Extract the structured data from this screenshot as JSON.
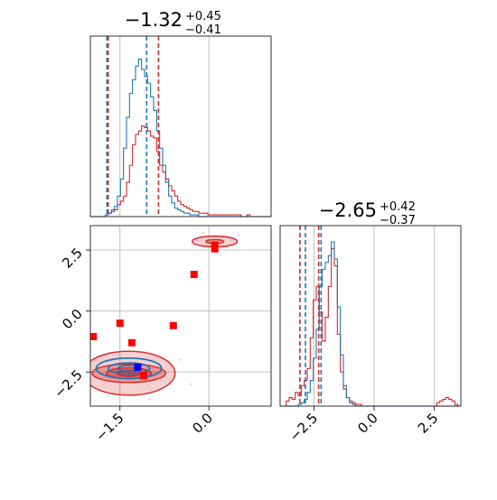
{
  "chart_data": {
    "type": "corner",
    "colors": {
      "series_a": "#d62728",
      "series_b": "#1f77b4",
      "truth_marker": "#ff0000",
      "truth_point": "#0000ff",
      "grid": "#b0b0b0"
    },
    "parameters": [
      {
        "title_main": "−1.32",
        "title_sup": "+0.45",
        "title_sub": "−0.41",
        "range": [
          -2.0,
          1.05
        ],
        "ticks": [
          -1.5,
          0.0
        ],
        "tick_labels": [
          "−1.5",
          "0.0"
        ]
      },
      {
        "title_main": "−2.65",
        "title_sup": "+0.42",
        "title_sub": "−0.37",
        "range": [
          -3.9,
          3.6
        ],
        "ticks": [
          -2.5,
          0.0,
          2.5
        ],
        "tick_labels": [
          "−2.5",
          "0.0",
          "2.5"
        ]
      }
    ],
    "panel_2d_yticks": [
      2.5,
      0.0,
      -2.5
    ],
    "panel_2d_ytick_labels": [
      "2.5",
      "0.0",
      "−2.5"
    ],
    "hist1": {
      "bins": [
        -2.0,
        1.05,
        60
      ],
      "series": [
        {
          "name_color": "red",
          "values": [
            0,
            0,
            0,
            0,
            0,
            1,
            2,
            3,
            4,
            7,
            9,
            12,
            20,
            30,
            42,
            48,
            50,
            53,
            52,
            50,
            47,
            46,
            38,
            30,
            26,
            22,
            18,
            15,
            12,
            9,
            7,
            6,
            5,
            4,
            3,
            3,
            2,
            2,
            2,
            1,
            1,
            1,
            1,
            1,
            1,
            1,
            1,
            1,
            1,
            1,
            0,
            0,
            1,
            0,
            0,
            0,
            0,
            0,
            0,
            0
          ],
          "quantile_lines": [
            -1.7,
            -0.85
          ]
        },
        {
          "name_color": "blue",
          "values": [
            0,
            0,
            0,
            0,
            0,
            1,
            2,
            4,
            6,
            12,
            22,
            40,
            58,
            72,
            80,
            88,
            92,
            86,
            82,
            78,
            70,
            62,
            50,
            40,
            30,
            20,
            12,
            8,
            5,
            4,
            3,
            2,
            2,
            1,
            1,
            1,
            0,
            0,
            0,
            0,
            0,
            0,
            0,
            0,
            0,
            0,
            0,
            0,
            0,
            0,
            0,
            0,
            0,
            0,
            0,
            0,
            0,
            0,
            0,
            0
          ],
          "quantile_lines": [
            -1.72,
            -1.05
          ]
        }
      ]
    },
    "hist2": {
      "bins": [
        -3.9,
        3.6,
        60
      ],
      "series": [
        {
          "name_color": "red",
          "values": [
            0,
            0,
            3,
            5,
            4,
            8,
            6,
            12,
            15,
            22,
            40,
            62,
            70,
            55,
            38,
            52,
            70,
            92,
            82,
            42,
            20,
            10,
            5,
            3,
            2,
            1,
            1,
            0,
            0,
            0,
            0,
            0,
            0,
            0,
            0,
            0,
            0,
            0,
            0,
            0,
            0,
            0,
            0,
            0,
            0,
            0,
            0,
            0,
            0,
            0,
            0,
            0,
            2,
            3,
            4,
            5,
            4,
            3,
            1,
            0
          ],
          "quantile_lines": [
            -3.08,
            -2.3
          ]
        },
        {
          "name_color": "blue",
          "values": [
            0,
            0,
            0,
            0,
            0,
            0,
            1,
            2,
            4,
            8,
            15,
            28,
            45,
            70,
            80,
            84,
            88,
            96,
            86,
            58,
            30,
            12,
            5,
            2,
            1,
            0,
            0,
            0,
            0,
            0,
            0,
            0,
            0,
            0,
            0,
            0,
            0,
            0,
            0,
            0,
            0,
            0,
            0,
            0,
            0,
            0,
            0,
            0,
            0,
            0,
            0,
            0,
            0,
            0,
            0,
            0,
            0,
            0,
            0,
            0
          ],
          "quantile_lines": [
            -2.85,
            -2.2
          ]
        }
      ]
    },
    "scatter_markers": [
      {
        "x": 0.1,
        "y": 2.7
      },
      {
        "x": 0.1,
        "y": 2.55
      },
      {
        "x": -0.25,
        "y": 1.5
      },
      {
        "x": -1.95,
        "y": -1.05
      },
      {
        "x": -1.5,
        "y": -0.5
      },
      {
        "x": -1.3,
        "y": -1.3
      },
      {
        "x": -0.6,
        "y": -0.6
      },
      {
        "x": -1.1,
        "y": -2.65
      }
    ],
    "true_point": {
      "x": -1.2,
      "y": -2.3
    },
    "clusters": [
      {
        "cx": -1.35,
        "cy": -2.55,
        "rx": [
          0.2,
          0.38,
          0.62,
          0.78
        ],
        "ry": [
          0.12,
          0.22,
          0.38,
          0.9
        ],
        "series": "red"
      },
      {
        "cx": -1.35,
        "cy": -2.35,
        "rx": [
          0.18,
          0.35,
          0.55
        ],
        "ry": [
          0.12,
          0.22,
          0.42
        ],
        "series": "blue"
      },
      {
        "cx": 0.1,
        "cy": 2.85,
        "rx": [
          0.15,
          0.38
        ],
        "ry": [
          0.08,
          0.22
        ],
        "series": "red"
      }
    ]
  }
}
